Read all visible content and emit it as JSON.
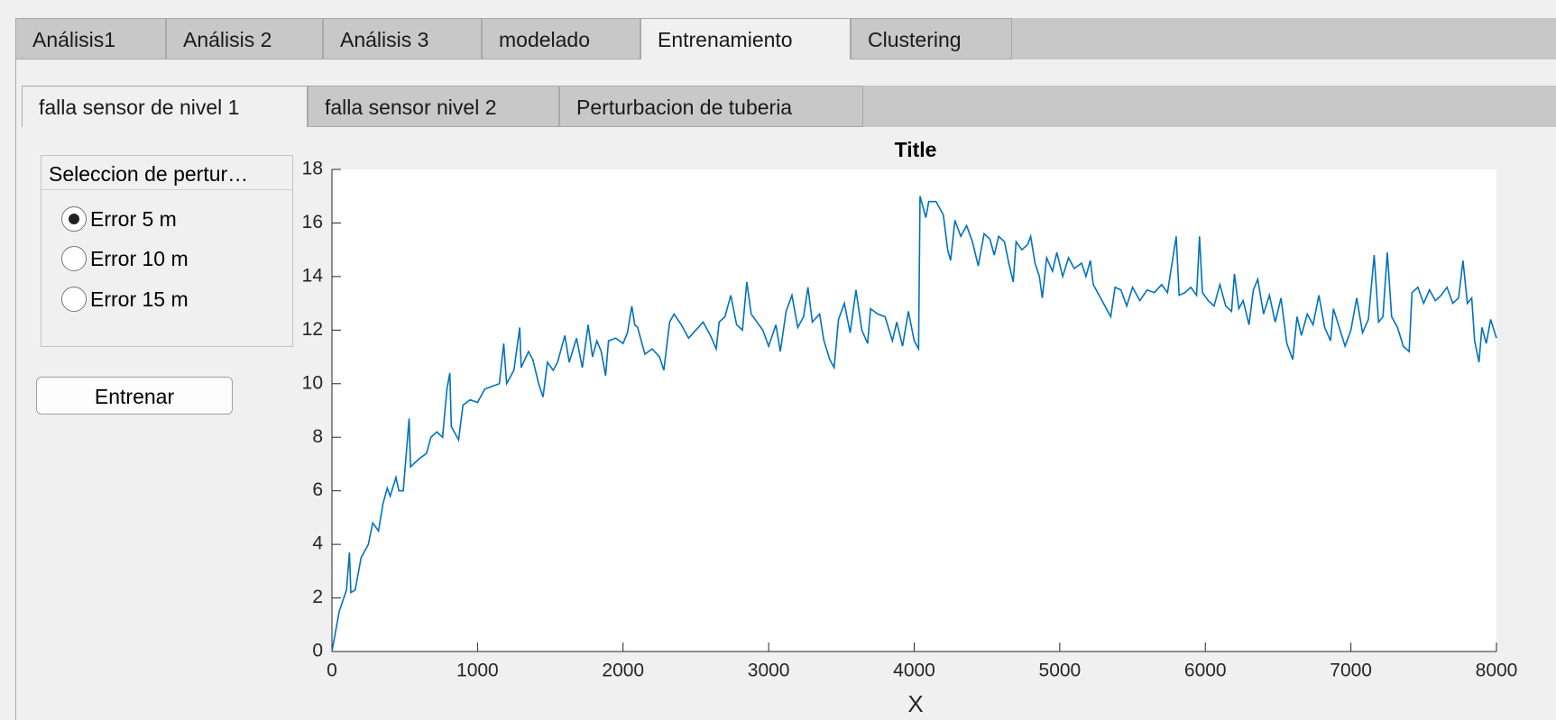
{
  "tabs": [
    "Análisis1",
    "Análisis 2",
    "Análisis 3",
    "modelado",
    "Entrenamiento",
    "Clustering"
  ],
  "subtabs": [
    "falla sensor de nivel 1",
    "falla sensor nivel 2",
    "Perturbacion de tuberia"
  ],
  "panel": {
    "title": "Seleccion de pertur…",
    "options": [
      "Error 5 m",
      "Error 10 m",
      "Error 15 m"
    ]
  },
  "button": "Entrenar",
  "chart_data": {
    "type": "line",
    "title": "Title",
    "x_label": "X",
    "color": "#0072bd",
    "xlim": [
      0,
      8000
    ],
    "ylim": [
      0,
      18
    ],
    "xticks": [
      0,
      1000,
      2000,
      3000,
      4000,
      5000,
      6000,
      7000,
      8000
    ],
    "yticks": [
      0,
      2,
      4,
      6,
      8,
      10,
      12,
      14,
      16,
      18
    ],
    "x": [
      0,
      50,
      100,
      120,
      130,
      160,
      200,
      250,
      280,
      320,
      350,
      380,
      400,
      440,
      460,
      490,
      530,
      540,
      600,
      650,
      680,
      720,
      760,
      790,
      810,
      820,
      870,
      900,
      950,
      1000,
      1050,
      1100,
      1150,
      1180,
      1200,
      1250,
      1290,
      1300,
      1350,
      1380,
      1420,
      1450,
      1480,
      1520,
      1550,
      1580,
      1600,
      1630,
      1680,
      1720,
      1760,
      1790,
      1820,
      1850,
      1880,
      1900,
      1950,
      2000,
      2030,
      2060,
      2080,
      2100,
      2150,
      2200,
      2250,
      2280,
      2320,
      2350,
      2400,
      2450,
      2500,
      2550,
      2600,
      2640,
      2660,
      2700,
      2740,
      2780,
      2820,
      2850,
      2880,
      2920,
      2960,
      3000,
      3050,
      3080,
      3120,
      3160,
      3200,
      3240,
      3270,
      3300,
      3350,
      3380,
      3420,
      3450,
      3480,
      3520,
      3560,
      3600,
      3640,
      3680,
      3700,
      3750,
      3800,
      3850,
      3880,
      3920,
      3960,
      4000,
      4030,
      4040,
      4080,
      4100,
      4150,
      4200,
      4230,
      4250,
      4280,
      4320,
      4360,
      4400,
      4440,
      4480,
      4520,
      4550,
      4580,
      4620,
      4650,
      4680,
      4700,
      4740,
      4780,
      4800,
      4830,
      4860,
      4880,
      4910,
      4950,
      4980,
      5020,
      5060,
      5100,
      5150,
      5180,
      5210,
      5230,
      5280,
      5320,
      5350,
      5380,
      5420,
      5460,
      5500,
      5550,
      5600,
      5650,
      5700,
      5740,
      5780,
      5800,
      5820,
      5860,
      5900,
      5940,
      5960,
      5980,
      6020,
      6060,
      6100,
      6140,
      6180,
      6200,
      6230,
      6260,
      6300,
      6330,
      6360,
      6400,
      6440,
      6480,
      6520,
      6560,
      6600,
      6630,
      6660,
      6700,
      6740,
      6780,
      6820,
      6860,
      6880,
      6920,
      6960,
      7000,
      7040,
      7080,
      7120,
      7160,
      7190,
      7220,
      7250,
      7280,
      7320,
      7360,
      7400,
      7420,
      7460,
      7500,
      7540,
      7580,
      7620,
      7660,
      7700,
      7740,
      7770,
      7800,
      7830,
      7850,
      7880,
      7900,
      7930,
      7960,
      8000
    ],
    "values": [
      0,
      1.5,
      2.3,
      3.7,
      2.2,
      2.3,
      3.5,
      4.0,
      4.8,
      4.5,
      5.5,
      6.1,
      5.8,
      6.5,
      6.0,
      6.0,
      8.7,
      6.9,
      7.2,
      7.4,
      8.0,
      8.2,
      8.0,
      9.8,
      10.4,
      8.4,
      7.9,
      9.2,
      9.4,
      9.3,
      9.8,
      9.9,
      10.0,
      11.5,
      10.0,
      10.5,
      12.1,
      10.6,
      11.2,
      10.9,
      10.0,
      9.5,
      10.8,
      10.5,
      10.8,
      11.4,
      11.8,
      10.8,
      11.7,
      10.6,
      12.2,
      11.0,
      11.6,
      11.2,
      10.3,
      11.6,
      11.7,
      11.5,
      11.9,
      12.9,
      12.2,
      12.1,
      11.1,
      11.3,
      11.0,
      10.5,
      12.3,
      12.6,
      12.2,
      11.7,
      12.0,
      12.3,
      11.8,
      11.3,
      12.3,
      12.5,
      13.3,
      12.2,
      12.0,
      13.8,
      12.6,
      12.3,
      12.0,
      11.4,
      12.2,
      11.2,
      12.7,
      13.3,
      12.1,
      12.5,
      13.6,
      12.3,
      12.6,
      11.6,
      10.9,
      10.6,
      12.4,
      13.0,
      11.9,
      13.5,
      12.0,
      11.5,
      12.8,
      12.6,
      12.5,
      11.6,
      12.3,
      11.4,
      12.7,
      11.6,
      11.3,
      17.0,
      16.2,
      16.8,
      16.8,
      16.3,
      15.0,
      14.6,
      16.1,
      15.5,
      15.9,
      15.3,
      14.4,
      15.6,
      15.4,
      14.8,
      15.5,
      15.3,
      14.5,
      13.8,
      15.3,
      15.0,
      15.2,
      15.5,
      14.5,
      14.0,
      13.2,
      14.7,
      14.2,
      14.9,
      14.0,
      14.7,
      14.3,
      14.5,
      14.0,
      14.6,
      13.7,
      13.2,
      12.8,
      12.5,
      13.6,
      13.5,
      12.9,
      13.6,
      13.1,
      13.5,
      13.4,
      13.7,
      13.4,
      14.8,
      15.5,
      13.3,
      13.4,
      13.6,
      13.3,
      15.5,
      13.4,
      13.1,
      12.9,
      13.7,
      12.9,
      12.7,
      14.1,
      12.8,
      13.1,
      12.2,
      13.5,
      13.9,
      12.6,
      13.3,
      12.3,
      13.2,
      11.5,
      10.9,
      12.5,
      11.8,
      12.6,
      12.2,
      13.3,
      12.1,
      11.6,
      12.8,
      12.1,
      11.4,
      12.0,
      13.2,
      11.9,
      12.4,
      14.8,
      12.3,
      12.5,
      14.9,
      12.5,
      12.1,
      11.4,
      11.2,
      13.4,
      13.6,
      13.0,
      13.5,
      13.1,
      13.3,
      13.6,
      13.0,
      13.2,
      14.6,
      13.0,
      13.2,
      11.6,
      10.8,
      12.1,
      11.5,
      12.4,
      11.7
    ]
  }
}
